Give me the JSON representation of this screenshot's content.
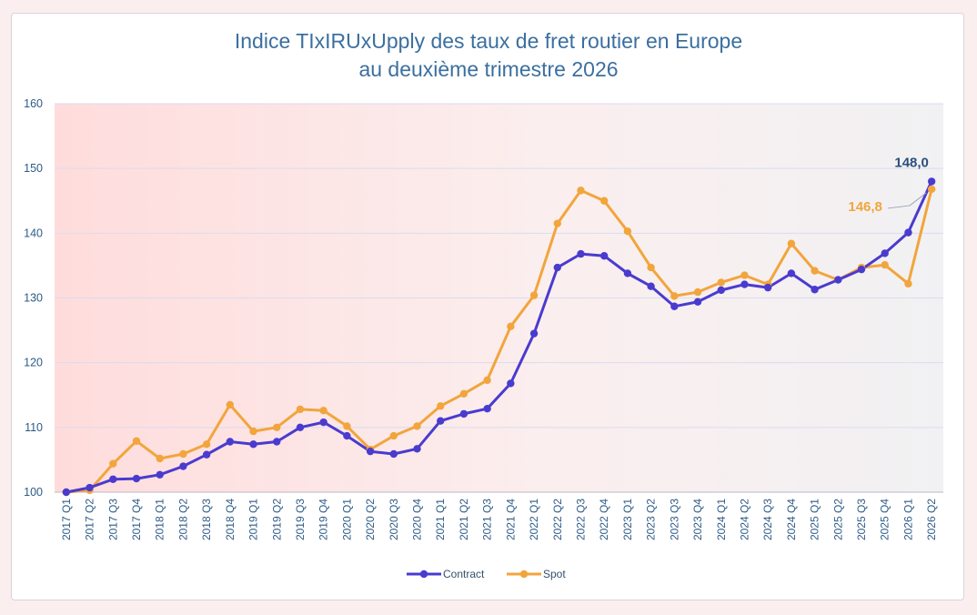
{
  "chart_data": {
    "type": "line",
    "title": "Indice TIxIRUxUpply des taux de fret routier en Europe",
    "subtitle": "au deuxième trimestre 2026",
    "xlabel": "",
    "ylabel": "",
    "ylim": [
      100,
      160
    ],
    "yticks": [
      100,
      110,
      120,
      130,
      140,
      150,
      160
    ],
    "grid": true,
    "legend_position": "bottom",
    "categories": [
      "2017 Q1",
      "2017 Q2",
      "2017 Q3",
      "2017 Q4",
      "2018 Q1",
      "2018 Q2",
      "2018 Q3",
      "2018 Q4",
      "2019 Q1",
      "2019 Q2",
      "2019 Q3",
      "2019 Q4",
      "2020 Q1",
      "2020 Q2",
      "2020 Q3",
      "2020 Q4",
      "2021 Q1",
      "2021 Q2",
      "2021 Q3",
      "2021 Q4",
      "2022 Q1",
      "2022 Q2",
      "2022 Q3",
      "2022 Q4",
      "2023 Q1",
      "2023 Q2",
      "2023 Q3",
      "2023 Q4",
      "2024 Q1",
      "2024 Q2",
      "2024 Q3",
      "2024 Q4",
      "2025 Q1",
      "2025 Q2",
      "2025 Q3",
      "2025 Q4",
      "2026 Q1",
      "2026 Q2"
    ],
    "series": [
      {
        "name": "Contract",
        "color": "#4a3bcf",
        "values": [
          100.0,
          100.7,
          102.0,
          102.1,
          102.7,
          104.0,
          105.8,
          107.8,
          107.4,
          107.8,
          110.0,
          110.8,
          108.7,
          106.3,
          105.9,
          106.7,
          111.0,
          112.1,
          112.9,
          116.8,
          124.5,
          134.7,
          136.8,
          136.5,
          133.8,
          131.8,
          128.7,
          129.4,
          131.2,
          132.1,
          131.6,
          133.8,
          131.3,
          132.8,
          134.4,
          136.9,
          140.1,
          148.0
        ]
      },
      {
        "name": "Spot",
        "color": "#f2a53c",
        "values": [
          100.0,
          100.3,
          104.4,
          107.9,
          105.2,
          105.9,
          107.4,
          113.5,
          109.4,
          110.0,
          112.8,
          112.6,
          110.2,
          106.6,
          108.7,
          110.2,
          113.3,
          115.2,
          117.3,
          125.6,
          130.4,
          141.5,
          146.6,
          145.0,
          140.3,
          134.7,
          130.3,
          130.9,
          132.4,
          133.5,
          132.1,
          138.4,
          134.2,
          132.8,
          134.7,
          135.1,
          132.2,
          146.8
        ]
      }
    ],
    "annotations": [
      {
        "text": "148,0",
        "series": "Contract",
        "color": "#2a4f7d"
      },
      {
        "text": "146,8",
        "series": "Spot",
        "color": "#f2a53c"
      }
    ]
  }
}
